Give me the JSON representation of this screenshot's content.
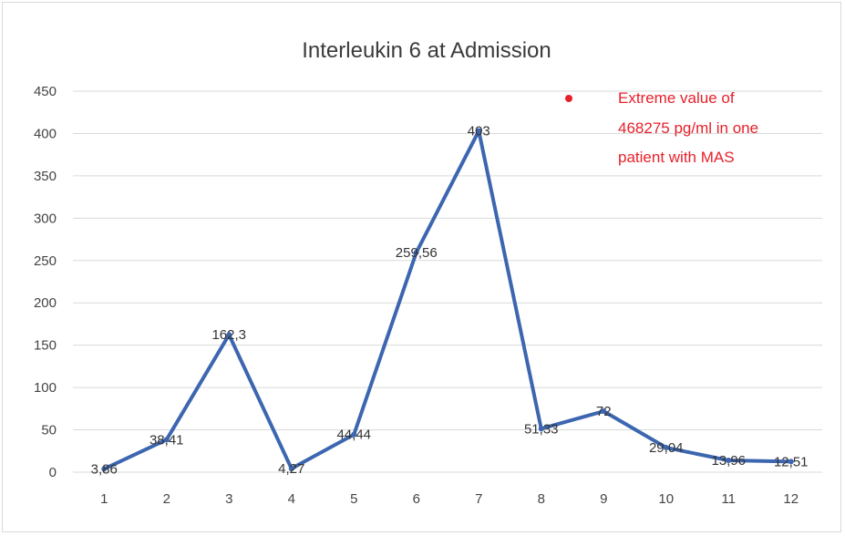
{
  "chart_data": {
    "type": "line",
    "title": "Interleukin 6 at Admission",
    "xlabel": "",
    "ylabel": "",
    "categories": [
      "1",
      "2",
      "3",
      "4",
      "5",
      "6",
      "7",
      "8",
      "9",
      "10",
      "11",
      "12"
    ],
    "series": [
      {
        "values": [
          3.86,
          38.41,
          162.3,
          4.27,
          44.44,
          259.56,
          403,
          51.33,
          72,
          29.04,
          13.96,
          12.51
        ],
        "labels": [
          "3,86",
          "38,41",
          "162,3",
          "4,27",
          "44,44",
          "259,56",
          "403",
          "51,33",
          "72",
          "29,04",
          "13,96",
          "12,51"
        ]
      }
    ],
    "yticks": [
      "0",
      "50",
      "100",
      "150",
      "200",
      "250",
      "300",
      "350",
      "400",
      "450"
    ],
    "ylim": [
      0,
      450
    ],
    "grid": true,
    "line_color": "#3c66b0",
    "annotation": {
      "lines": [
        "Extreme value of",
        "468275 pg/ml in one",
        "patient with MAS"
      ],
      "color": "#e8202a"
    }
  }
}
